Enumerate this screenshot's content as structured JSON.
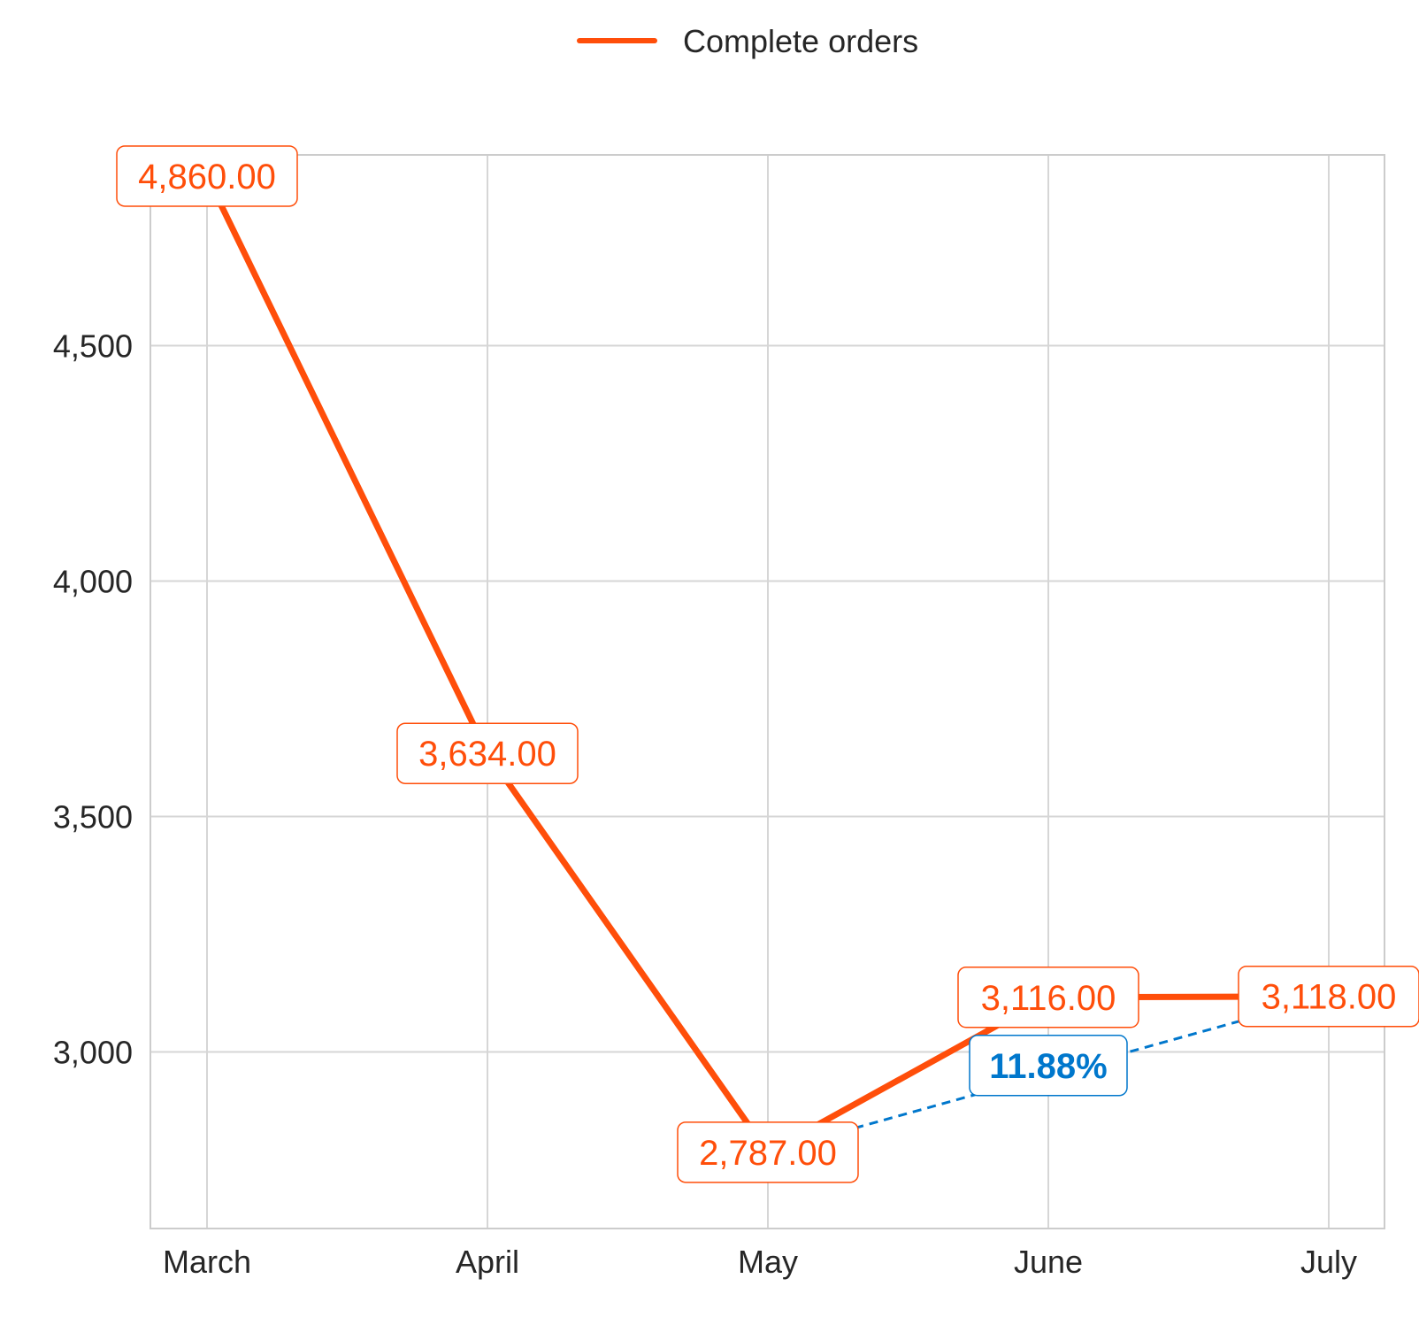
{
  "chart_data": {
    "type": "line",
    "categories": [
      "March",
      "April",
      "May",
      "June",
      "July"
    ],
    "series": [
      {
        "name": "Complete orders",
        "values": [
          4860,
          3634,
          2787,
          3116,
          3118
        ],
        "labels": [
          "4,860.00",
          "3,634.00",
          "2,787.00",
          "3,116.00",
          "3,118.00"
        ],
        "color": "#FF4E0A"
      }
    ],
    "yticks": [
      3000,
      3500,
      4000,
      4500
    ],
    "ytick_labels": [
      "3,000",
      "3,500",
      "4,000",
      "4,500"
    ],
    "ylim": [
      2625,
      4905
    ],
    "grid": true,
    "legend": "top-center",
    "trend": {
      "from_category": "May",
      "to_category": "July",
      "from_value": 2787,
      "to_value": 3118,
      "label": "11.88%",
      "color": "#0077CC",
      "style": "dashed"
    }
  }
}
